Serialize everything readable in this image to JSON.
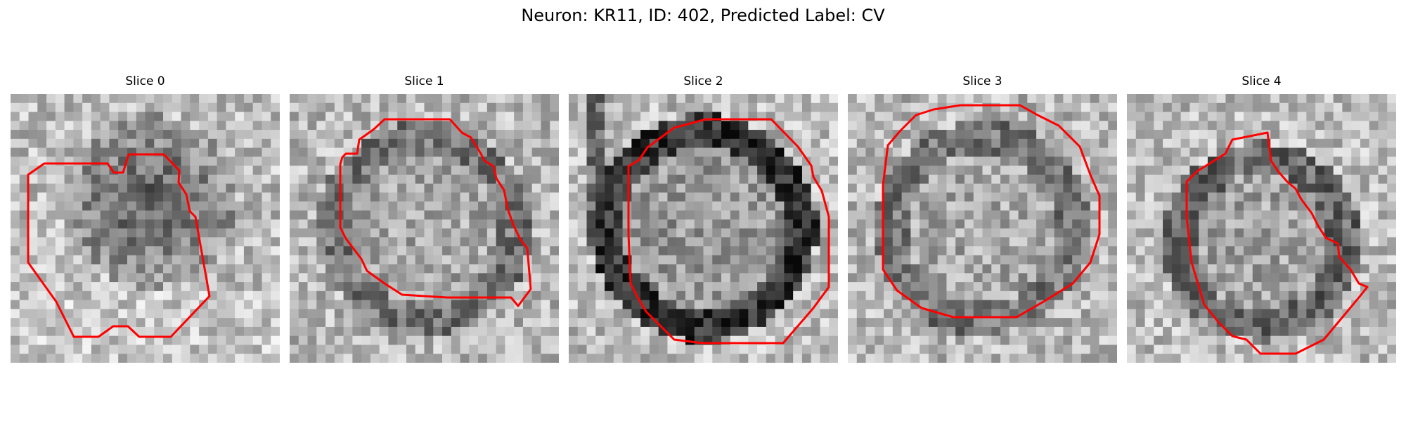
{
  "figure": {
    "title": "Neuron: KR11, ID: 402, Predicted Label: CV"
  },
  "panels": [
    {
      "title": "Slice 0",
      "seed": 11,
      "structure": "dark-blob",
      "contour_color": "#ff0000"
    },
    {
      "title": "Slice 1",
      "seed": 23,
      "structure": "ring-light",
      "contour_color": "#ff0000"
    },
    {
      "title": "Slice 2",
      "seed": 37,
      "structure": "ring-dark",
      "contour_color": "#ff0000"
    },
    {
      "title": "Slice 3",
      "seed": 41,
      "structure": "ring-light",
      "contour_color": "#ff0000"
    },
    {
      "title": "Slice 4",
      "seed": 53,
      "structure": "ring-medium",
      "contour_color": "#ff0000"
    }
  ]
}
